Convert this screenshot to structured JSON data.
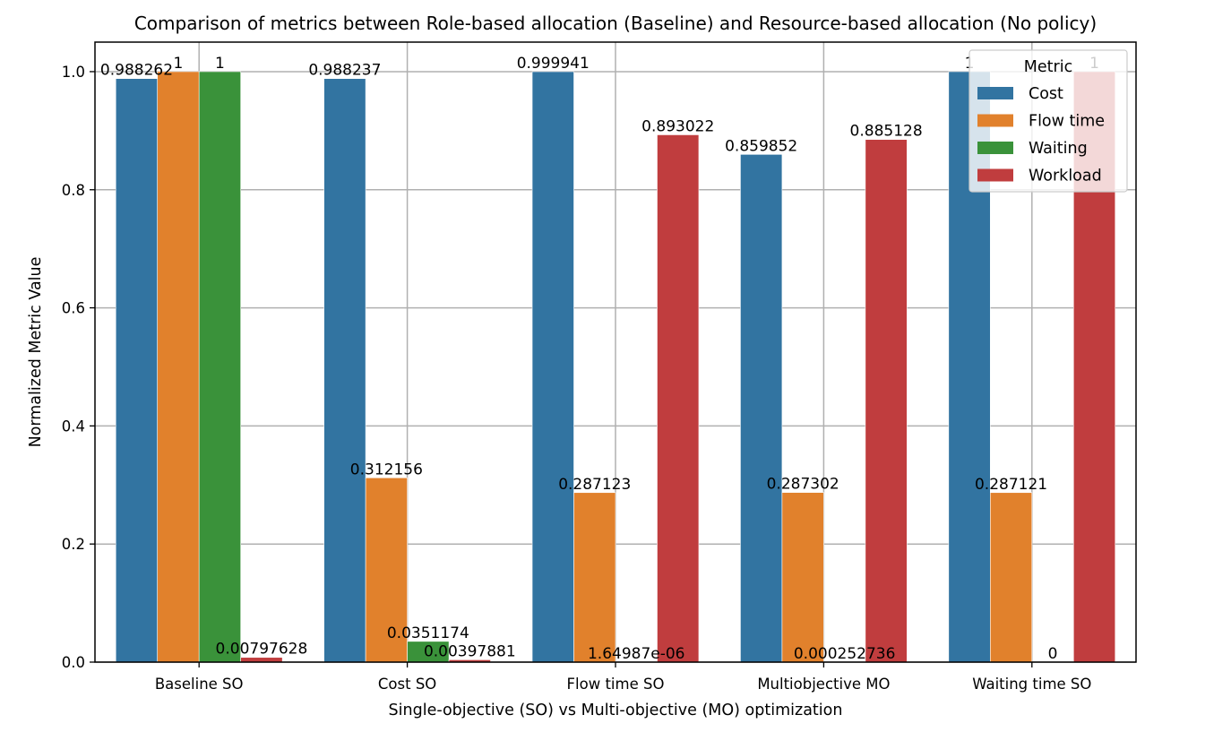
{
  "chart_data": {
    "type": "bar",
    "title": "Comparison of metrics between Role-based allocation (Baseline) and Resource-based allocation (No policy)",
    "xlabel": "Single-objective (SO) vs Multi-objective (MO) optimization",
    "ylabel": "Normalized Metric Value",
    "ylim": [
      0,
      1.05
    ],
    "yticks": [
      "0.0",
      "0.2",
      "0.4",
      "0.6",
      "0.8",
      "1.0"
    ],
    "grid": true,
    "categories": [
      "Baseline SO",
      "Cost SO",
      "Flow time SO",
      "Multiobjective MO",
      "Waiting time SO"
    ],
    "legend": {
      "title": "Metric",
      "placement": "top-right"
    },
    "series": [
      {
        "name": "Cost",
        "color": "#3274a1",
        "values": [
          0.988262,
          0.988237,
          0.999941,
          0.859852,
          1
        ],
        "labels": [
          "0.988262",
          "0.988237",
          "0.999941",
          "0.859852",
          "1"
        ]
      },
      {
        "name": "Flow time",
        "color": "#e1812c",
        "values": [
          1,
          0.312156,
          0.287123,
          0.287302,
          0.287121
        ],
        "labels": [
          "1",
          "0.312156",
          "0.287123",
          "0.287302",
          "0.287121"
        ]
      },
      {
        "name": "Waiting",
        "color": "#3a923a",
        "values": [
          1,
          0.0351174,
          1.64987e-06,
          0.000252736,
          0
        ],
        "labels": [
          "1",
          "0.0351174",
          "1.64987e-06",
          "0.000252736",
          "0"
        ]
      },
      {
        "name": "Workload",
        "color": "#c03d3e",
        "values": [
          0.00797628,
          0.00397881,
          0.893022,
          0.885128,
          1
        ],
        "labels": [
          "0.00797628",
          "0.00397881",
          "0.893022",
          "0.885128",
          "1"
        ]
      }
    ]
  }
}
